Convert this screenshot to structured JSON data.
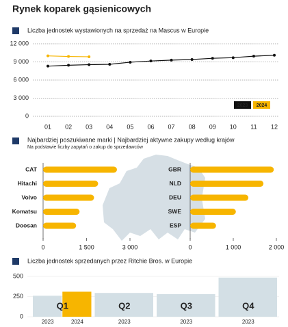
{
  "title": "Rynek koparek gąsienicowych",
  "chart_data": [
    {
      "type": "line",
      "title": "Liczba jednostek wystawionych na sprzedaż na Mascus w Europie",
      "categories": [
        "01",
        "02",
        "03",
        "04",
        "05",
        "06",
        "07",
        "08",
        "09",
        "10",
        "11",
        "12"
      ],
      "series": [
        {
          "name": "2023",
          "color": "#111111",
          "values": [
            8300,
            8450,
            8550,
            8600,
            8950,
            9150,
            9300,
            9400,
            9600,
            9700,
            9950,
            10100
          ]
        },
        {
          "name": "2024",
          "color": "#f7b500",
          "values": [
            10000,
            9900,
            9850,
            null,
            null,
            null,
            null,
            null,
            null,
            null,
            null,
            null
          ]
        }
      ],
      "ylim": [
        0,
        12000
      ],
      "yticks": [
        0,
        {
          "value": 3000,
          "label": "3 000"
        },
        {
          "value": 6000,
          "label": "6 000"
        },
        {
          "value": 9000,
          "label": "9 000"
        },
        {
          "value": 12000,
          "label": "12 000"
        }
      ],
      "grid": true,
      "legend": "lower right"
    },
    {
      "type": "hbar",
      "title": "Najbardziej poszukiwane marki | Najbardziej aktywne zakupy według krajów",
      "subtitle": "Na podstawie liczby zapytań o zakup do sprzedawców",
      "categories": [
        "CAT",
        "Hitachi",
        "Volvo",
        "Komatsu",
        "Doosan"
      ],
      "values": [
        2550,
        1900,
        1760,
        1260,
        1140
      ],
      "color": "#f7b500",
      "xlim": [
        0,
        3000
      ],
      "xticks": [
        0,
        {
          "value": 1500,
          "label": "1 500"
        },
        {
          "value": 3000,
          "label": "3 000"
        }
      ]
    },
    {
      "type": "hbar",
      "categories": [
        "GBR",
        "NLD",
        "DEU",
        "SWE",
        "ESP"
      ],
      "values": [
        1940,
        1700,
        1350,
        1060,
        600
      ],
      "color": "#f7b500",
      "xlim": [
        0,
        2000
      ],
      "xticks": [
        0,
        {
          "value": 1000,
          "label": "1 000"
        },
        {
          "value": 2000,
          "label": "2 000"
        }
      ]
    },
    {
      "type": "bar",
      "title": "Liczba jednostek sprzedanych przez Ritchie Bros. w Europie",
      "categories": [
        "Q1",
        "Q2",
        "Q3",
        "Q4"
      ],
      "series": [
        {
          "name": "2023",
          "color": "#d3dfe5",
          "values": [
            260,
            295,
            280,
            485
          ]
        },
        {
          "name": "2024",
          "color": "#f7b500",
          "values": [
            310,
            null,
            null,
            null
          ]
        }
      ],
      "ylim": [
        0,
        500
      ],
      "yticks": [
        0,
        250,
        500
      ]
    }
  ]
}
